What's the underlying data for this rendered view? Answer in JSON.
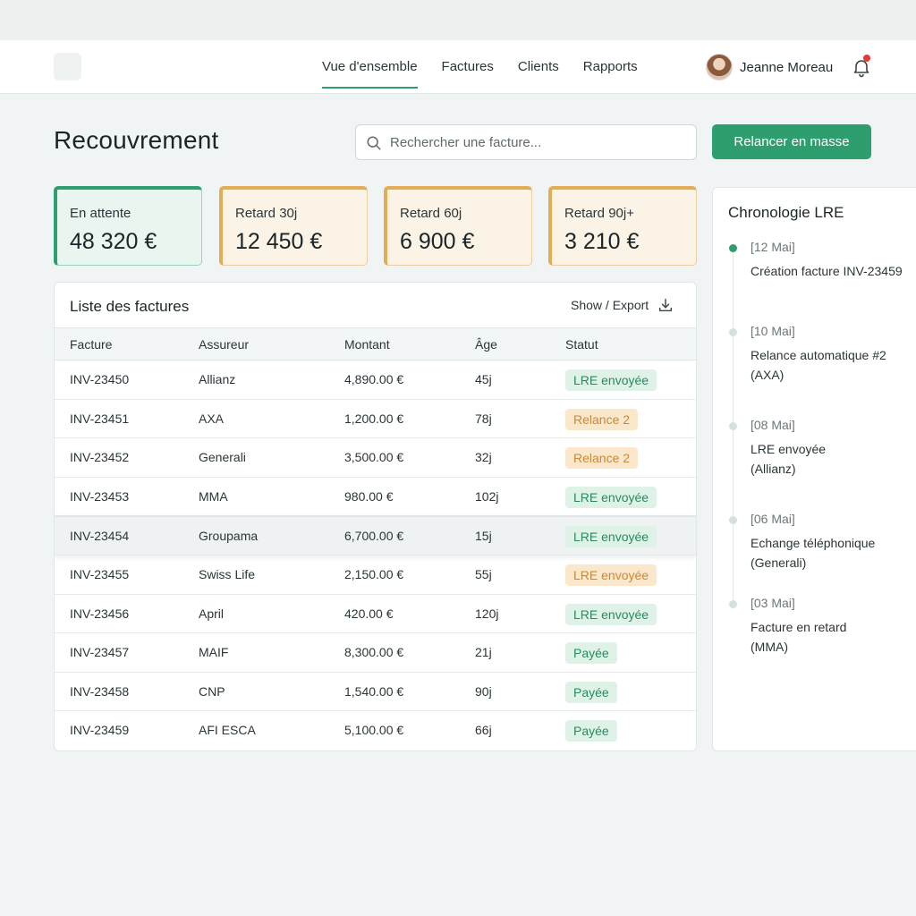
{
  "nav": {
    "tabs": [
      {
        "label": "Vue d'ensemble",
        "active": true
      },
      {
        "label": "Factures",
        "active": false
      },
      {
        "label": "Clients",
        "active": false
      },
      {
        "label": "Rapports",
        "active": false
      }
    ],
    "user_name": "Jeanne Moreau",
    "avatar_icon": "user-avatar",
    "notification_icon": "bell-icon"
  },
  "header": {
    "title": "Recouvrement",
    "search_placeholder": "Rechercher une facture...",
    "bulk_button": "Relancer en masse"
  },
  "kpis": [
    {
      "label": "En attente",
      "value": "48 320 €",
      "color": "#2f9e6f"
    },
    {
      "label": "Retard 30j",
      "value": "12 450 €",
      "color": "#e2ad54"
    },
    {
      "label": "Retard 60j",
      "value": "6 900 €",
      "color": "#e2ad54"
    },
    {
      "label": "Retard 90j+",
      "value": "3 210 €",
      "color": "#e2ad54"
    }
  ],
  "table": {
    "title": "Liste des factures",
    "export_label": "Show / Export",
    "columns": [
      "Facture",
      "Assureur",
      "Montant",
      "Âge",
      "Statut"
    ],
    "rows": [
      {
        "id": "INV-23450",
        "insurer": "Allianz",
        "amount": "4,890.00 €",
        "age": "45j",
        "status": "LRE envoyée",
        "tone": "green"
      },
      {
        "id": "INV-23451",
        "insurer": "AXA",
        "amount": "1,200.00 €",
        "age": "78j",
        "status": "Relance 2",
        "tone": "orange"
      },
      {
        "id": "INV-23452",
        "insurer": "Generali",
        "amount": "3,500.00 €",
        "age": "32j",
        "status": "Relance 2",
        "tone": "orange"
      },
      {
        "id": "INV-23453",
        "insurer": "MMA",
        "amount": "980.00 €",
        "age": "102j",
        "status": "LRE envoyée",
        "tone": "green"
      },
      {
        "id": "INV-23454",
        "insurer": "Groupama",
        "amount": "6,700.00 €",
        "age": "15j",
        "status": "LRE envoyée",
        "tone": "green",
        "highlighted": true
      },
      {
        "id": "INV-23455",
        "insurer": "Swiss Life",
        "amount": "2,150.00 €",
        "age": "55j",
        "status": "LRE envoyée",
        "tone": "orange"
      },
      {
        "id": "INV-23456",
        "insurer": "April",
        "amount": "420.00 €",
        "age": "120j",
        "status": "LRE envoyée",
        "tone": "green"
      },
      {
        "id": "INV-23457",
        "insurer": "MAIF",
        "amount": "8,300.00 €",
        "age": "21j",
        "status": "Payée",
        "tone": "green"
      },
      {
        "id": "INV-23458",
        "insurer": "CNP",
        "amount": "1,540.00 €",
        "age": "90j",
        "status": "Payée",
        "tone": "green"
      },
      {
        "id": "INV-23459",
        "insurer": "AFI ESCA",
        "amount": "5,100.00 €",
        "age": "66j",
        "status": "Payée",
        "tone": "green"
      }
    ]
  },
  "timeline": {
    "title": "Chronologie LRE",
    "events": [
      {
        "date": "[12 Mai]",
        "text": "Création facture INV-23459",
        "active": true
      },
      {
        "date": "[10 Mai]",
        "text": "Relance automatique #2 (AXA)",
        "active": false
      },
      {
        "date": "[08 Mai]",
        "text": "LRE envoyée (Allianz)",
        "active": false
      },
      {
        "date": "[06 Mai]",
        "text": "Echange téléphonique (Generali)",
        "active": false
      },
      {
        "date": "[03 Mai]",
        "text": "Facture en retard (MMA)",
        "active": false
      }
    ]
  },
  "colors": {
    "accent": "#2f9e6f",
    "warning": "#e2ad54",
    "notification": "#e53935"
  }
}
